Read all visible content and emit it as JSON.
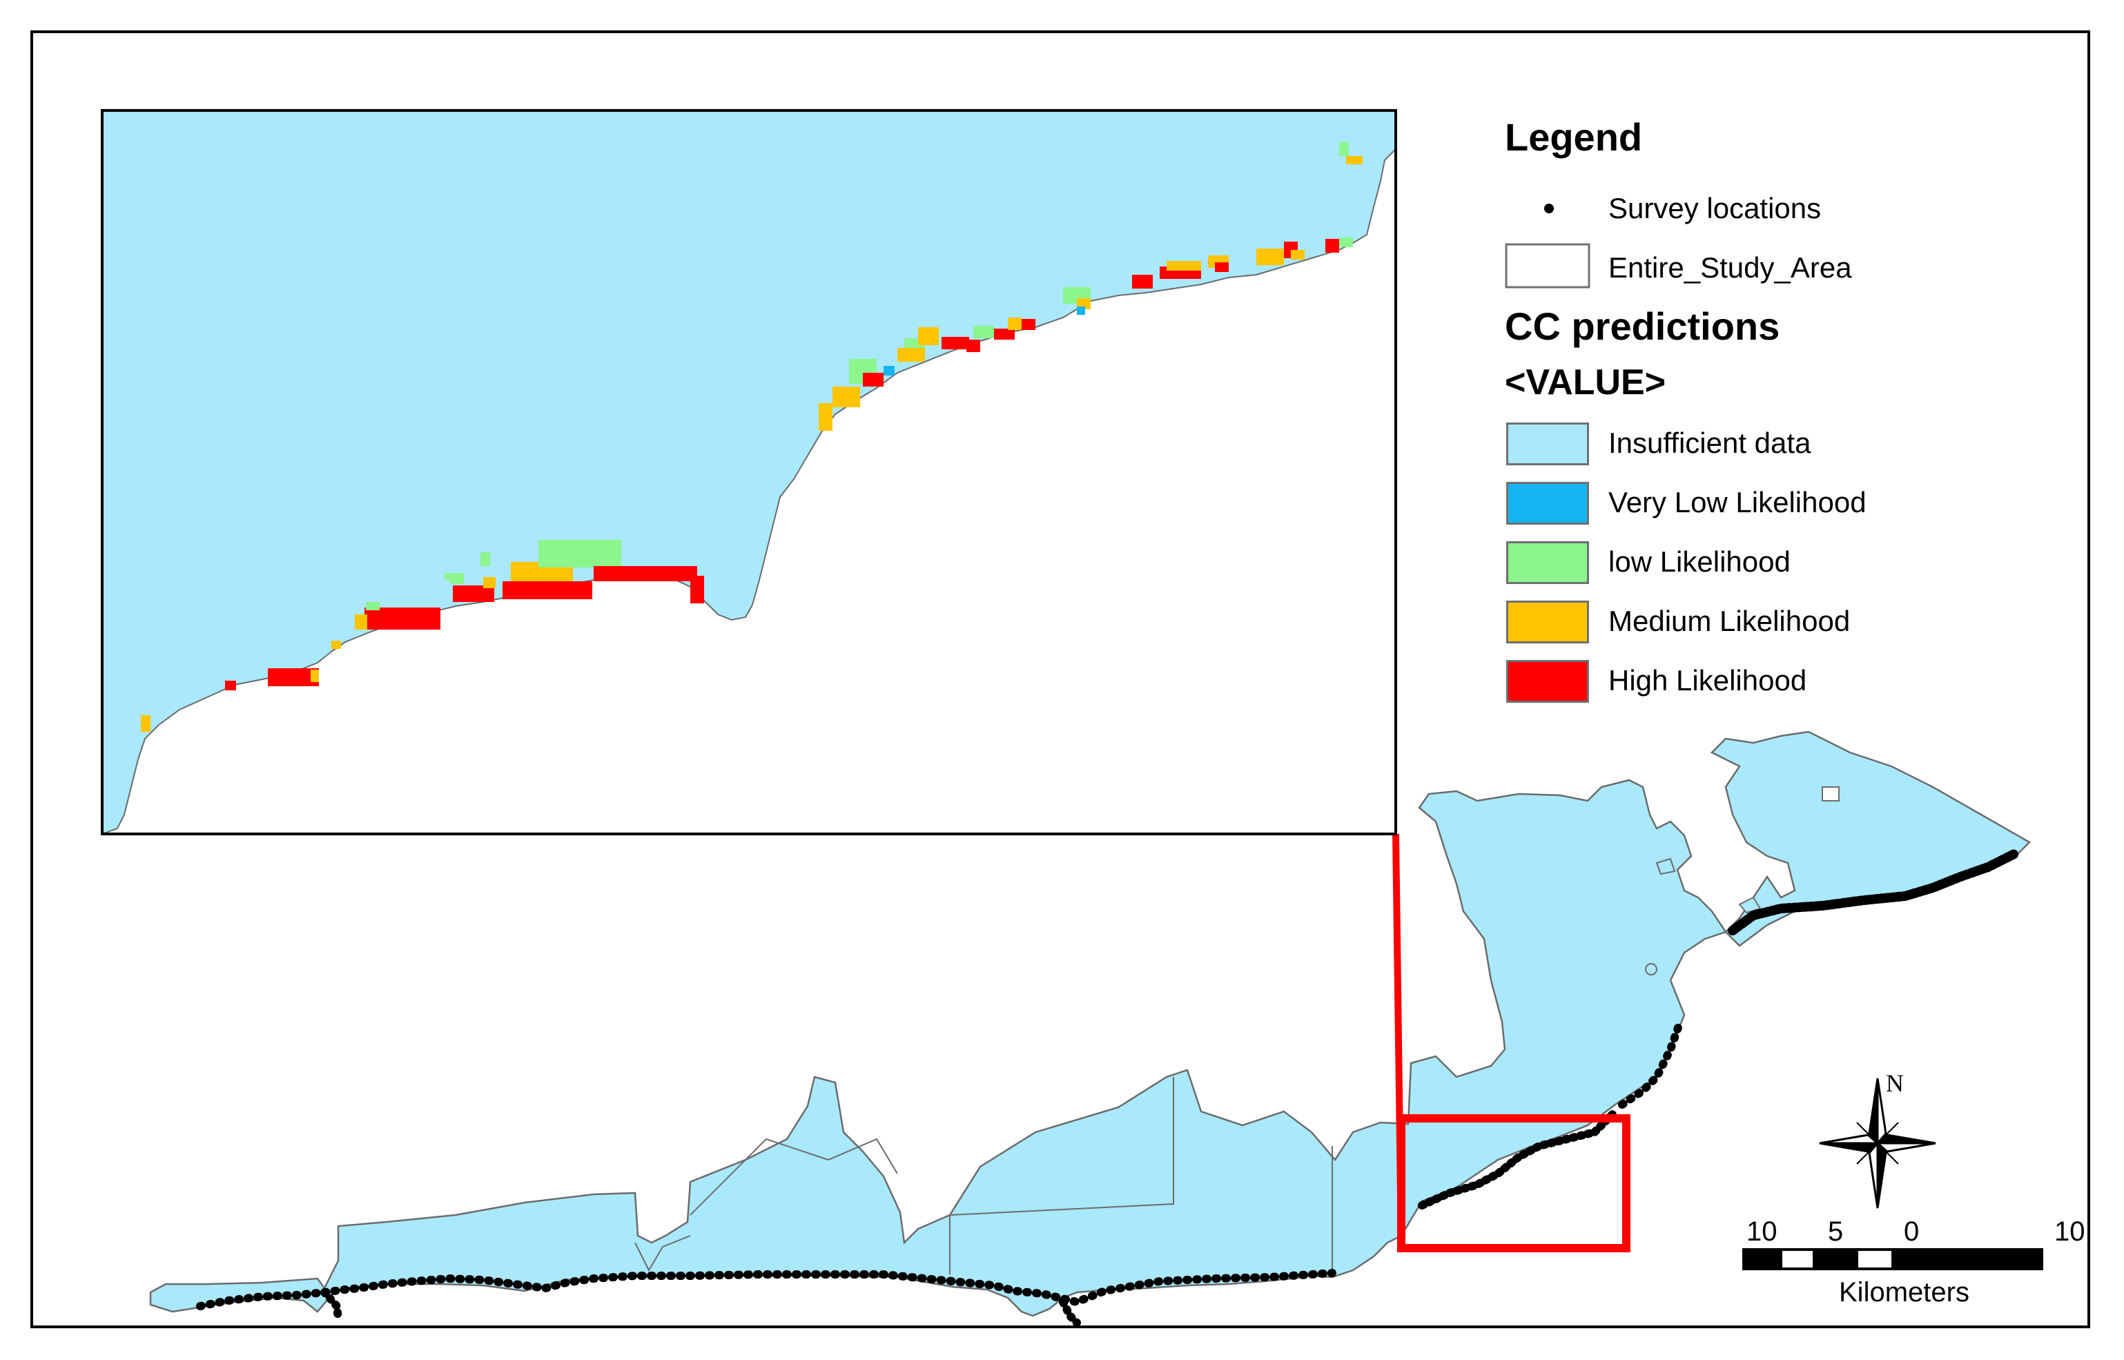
{
  "legend": {
    "title": "Legend",
    "survey_label": "Survey locations",
    "study_area_label": "Entire_Study_Area",
    "predictions_title": "CC predictions",
    "value_label": "<VALUE>",
    "classes": [
      {
        "label": "Insufficient data",
        "color": "#aae8fb"
      },
      {
        "label": "Very Low Likelihood",
        "color": "#14b4f0"
      },
      {
        "label": "low Likelihood",
        "color": "#8cf58c"
      },
      {
        "label": "Medium Likelihood",
        "color": "#ffc400"
      },
      {
        "label": "High Likelihood",
        "color": "#ff0000"
      }
    ]
  },
  "scale_bar": {
    "ticks": [
      "10",
      "5",
      "0",
      "10"
    ],
    "unit": "Kilometers"
  },
  "north_arrow": {
    "label": "N"
  },
  "colors": {
    "land": "#aae8fb",
    "study_area": "#ffffff",
    "boundary": "#6b6b6b",
    "survey_points": "#000000",
    "extent_box": "#ff0000"
  }
}
